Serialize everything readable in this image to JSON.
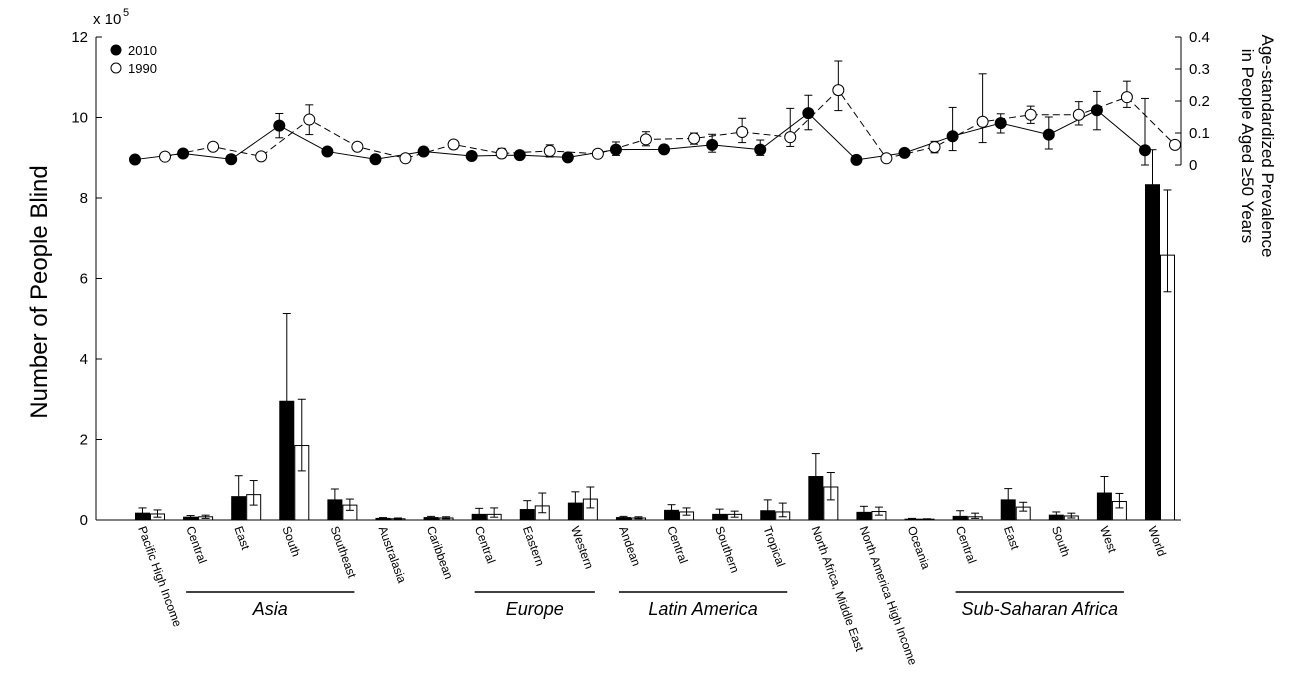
{
  "chart_data": {
    "type": "bar+line",
    "left_axis": {
      "label": "Number of People Blind",
      "multiplier": "x 10",
      "multiplier_exp": "5",
      "lim": [
        0,
        12
      ],
      "ticks": [
        "0",
        "2",
        "4",
        "6",
        "8",
        "10",
        "12"
      ]
    },
    "right_axis": {
      "label_line1": "Age-standardized Prevalence",
      "label_line2": "in People Aged ≥50 Years",
      "lim": [
        0,
        0.4
      ],
      "ticks": [
        "0",
        "0.1",
        "0.2",
        "0.3",
        "0.4"
      ]
    },
    "categories": [
      "Pacific High Income",
      "Central",
      "East",
      "South",
      "Southeast",
      "Australasia",
      "Caribbean",
      "Central",
      "Eastern",
      "Western",
      "Andean",
      "Central",
      "Southern",
      "Tropical",
      "North Africa, Middle East",
      "North America High Income",
      "Oceania",
      "Central",
      "East",
      "South",
      "West",
      "World"
    ],
    "groups": [
      {
        "label": "Asia",
        "from": 1,
        "to": 4
      },
      {
        "label": "Europe",
        "from": 7,
        "to": 9
      },
      {
        "label": "Latin America",
        "from": 10,
        "to": 13
      },
      {
        "label": "Sub-Saharan Africa",
        "from": 17,
        "to": 20
      }
    ],
    "series": [
      {
        "name": "2010",
        "bar_fill": "#000000",
        "marker": "filled",
        "line_style": "solid",
        "bars": [
          0.17,
          0.07,
          0.58,
          2.95,
          0.5,
          0.04,
          0.06,
          0.14,
          0.26,
          0.42,
          0.06,
          0.24,
          0.14,
          0.23,
          1.08,
          0.19,
          0.02,
          0.09,
          0.5,
          0.12,
          0.67,
          8.33
        ],
        "bars_lo": [
          0.08,
          0.04,
          0.3,
          1.75,
          0.28,
          0.03,
          0.04,
          0.06,
          0.12,
          0.22,
          0.04,
          0.12,
          0.06,
          0.08,
          0.65,
          0.1,
          0.01,
          0.03,
          0.3,
          0.06,
          0.38,
          7.65
        ],
        "bars_hi": [
          0.3,
          0.11,
          1.1,
          5.13,
          0.77,
          0.06,
          0.09,
          0.29,
          0.48,
          0.7,
          0.09,
          0.38,
          0.27,
          0.5,
          1.65,
          0.34,
          0.04,
          0.23,
          0.78,
          0.2,
          1.08,
          9.2
        ],
        "prevalence": [
          0.017,
          0.036,
          0.018,
          0.123,
          0.042,
          0.018,
          0.042,
          0.028,
          0.031,
          0.024,
          0.048,
          0.049,
          0.063,
          0.048,
          0.162,
          0.016,
          0.038,
          0.09,
          0.131,
          0.095,
          0.171,
          0.046
        ],
        "prevalence_lo": [
          0.012,
          0.026,
          0.01,
          0.085,
          0.032,
          0.008,
          0.03,
          0.02,
          0.02,
          0.016,
          0.03,
          0.038,
          0.04,
          0.03,
          0.11,
          0.008,
          0.025,
          0.045,
          0.1,
          0.05,
          0.11,
          0.0
        ],
        "prevalence_hi": [
          0.022,
          0.046,
          0.026,
          0.161,
          0.052,
          0.026,
          0.056,
          0.04,
          0.044,
          0.032,
          0.072,
          0.062,
          0.096,
          0.078,
          0.218,
          0.024,
          0.05,
          0.18,
          0.16,
          0.15,
          0.23,
          0.208
        ]
      },
      {
        "name": "1990",
        "bar_fill": "#ffffff",
        "marker": "open",
        "line_style": "dashed",
        "bars": [
          0.15,
          0.08,
          0.63,
          1.85,
          0.37,
          0.03,
          0.05,
          0.14,
          0.35,
          0.52,
          0.05,
          0.2,
          0.14,
          0.2,
          0.82,
          0.21,
          0.02,
          0.08,
          0.32,
          0.1,
          0.46,
          6.58
        ],
        "bars_lo": [
          0.07,
          0.04,
          0.37,
          1.22,
          0.24,
          0.02,
          0.03,
          0.07,
          0.18,
          0.3,
          0.03,
          0.12,
          0.07,
          0.08,
          0.5,
          0.12,
          0.01,
          0.04,
          0.22,
          0.05,
          0.3,
          5.67
        ],
        "bars_hi": [
          0.25,
          0.12,
          0.98,
          3.0,
          0.52,
          0.05,
          0.08,
          0.3,
          0.67,
          0.82,
          0.08,
          0.3,
          0.22,
          0.42,
          1.18,
          0.32,
          0.03,
          0.17,
          0.44,
          0.17,
          0.66,
          8.2
        ],
        "prevalence": [
          0.026,
          0.057,
          0.027,
          0.142,
          0.057,
          0.021,
          0.064,
          0.036,
          0.044,
          0.035,
          0.08,
          0.083,
          0.103,
          0.087,
          0.234,
          0.021,
          0.056,
          0.135,
          0.157,
          0.157,
          0.212,
          0.063
        ],
        "prevalence_lo": [
          0.018,
          0.046,
          0.019,
          0.095,
          0.045,
          0.012,
          0.05,
          0.022,
          0.025,
          0.026,
          0.06,
          0.065,
          0.07,
          0.058,
          0.17,
          0.015,
          0.038,
          0.07,
          0.13,
          0.125,
          0.18,
          0.057
        ],
        "prevalence_hi": [
          0.034,
          0.068,
          0.035,
          0.188,
          0.068,
          0.032,
          0.076,
          0.052,
          0.063,
          0.044,
          0.104,
          0.1,
          0.146,
          0.177,
          0.325,
          0.027,
          0.074,
          0.285,
          0.184,
          0.198,
          0.262,
          0.069
        ]
      }
    ],
    "legend": {
      "position": "top-left",
      "entries": [
        "2010",
        "1990"
      ]
    },
    "grid": false
  }
}
